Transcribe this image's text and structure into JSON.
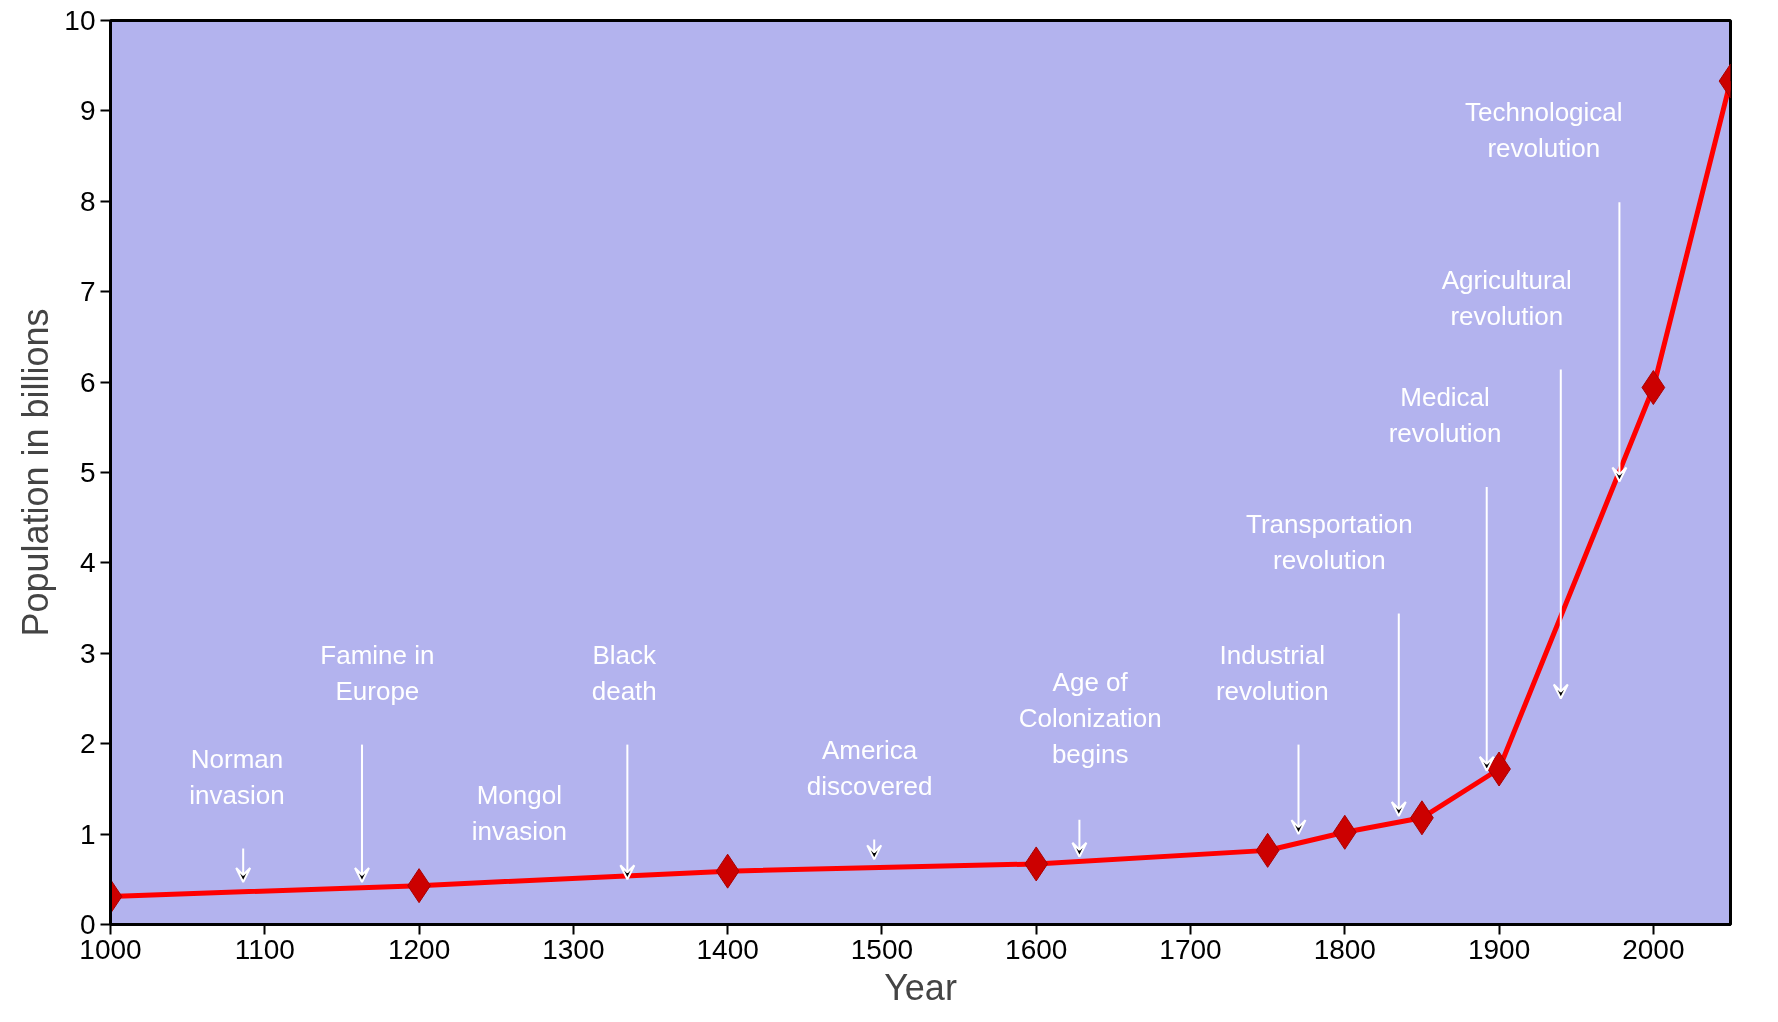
{
  "chart_data": {
    "type": "line",
    "xlabel": "Year",
    "ylabel": "Population in billions",
    "x": [
      1000,
      1200,
      1400,
      1600,
      1750,
      1800,
      1850,
      1900,
      2000,
      2050
    ],
    "series": [
      {
        "color": "#ff0000",
        "values": [
          0.31,
          0.43,
          0.59,
          0.67,
          0.82,
          1.02,
          1.18,
          1.72,
          5.94,
          9.33
        ]
      }
    ],
    "marker": "diamond",
    "line_style": "solid",
    "grid": false,
    "xlim": [
      1000,
      2050
    ],
    "ylim": [
      0,
      10
    ],
    "xticks": [
      1000,
      1100,
      1200,
      1300,
      1400,
      1500,
      1600,
      1700,
      1800,
      1900,
      2000
    ],
    "yticks": [
      0,
      1,
      2,
      3,
      4,
      5,
      6,
      7,
      8,
      9,
      10
    ],
    "annotations": [
      "Norman invasion",
      "Famine in Europe",
      "Mongol invasion",
      "Black death",
      "America discovered",
      "Age of Colonization begins",
      "Industrial revolution",
      "Transportation revolution",
      "Medical revolution",
      "Agricultural revolution",
      "Technological revolution"
    ]
  }
}
